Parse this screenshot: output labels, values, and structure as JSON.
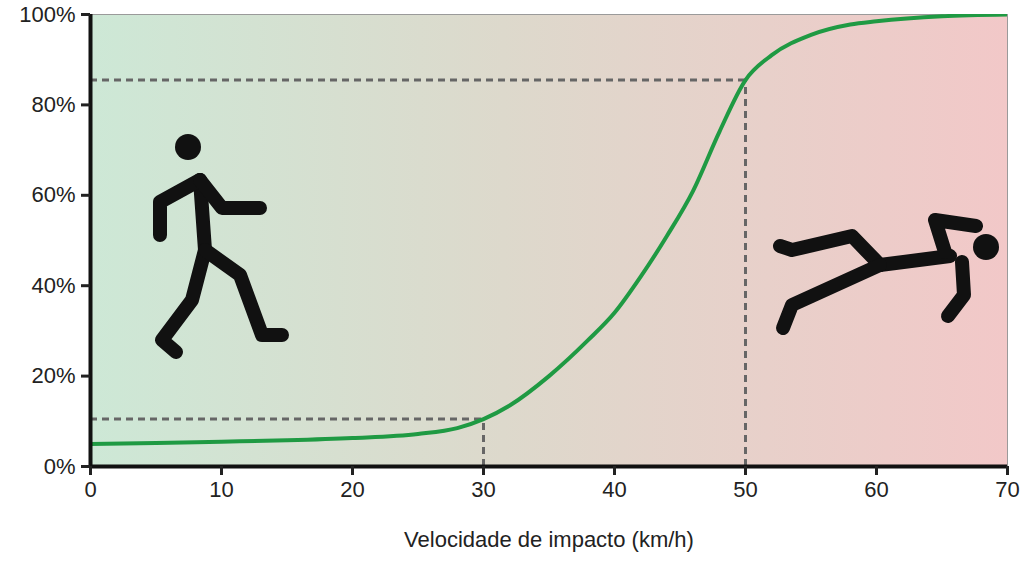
{
  "chart_data": {
    "type": "line",
    "x_label": "Velocidade de impacto (km/h)",
    "x": [
      0,
      5,
      10,
      15,
      20,
      25,
      28,
      30,
      32,
      35,
      38,
      40,
      42,
      44,
      46,
      48,
      50,
      52,
      55,
      58,
      60,
      65,
      70
    ],
    "values": [
      5,
      5.2,
      5.5,
      5.8,
      6.3,
      7.2,
      8.5,
      10.5,
      13.5,
      20,
      28,
      34,
      42,
      51,
      61,
      74,
      85.5,
      91,
      95.5,
      97.8,
      98.5,
      99.6,
      100
    ],
    "color": "#1f9a43",
    "reference_points": [
      {
        "x": 30,
        "y": 10.5
      },
      {
        "x": 50,
        "y": 85.5
      }
    ],
    "xlim": [
      0,
      70
    ],
    "xticks": [
      0,
      10,
      20,
      30,
      40,
      50,
      60,
      70
    ],
    "ylim": [
      0,
      100
    ],
    "yticks": [
      {
        "value": 0,
        "label": "0%"
      },
      {
        "value": 20,
        "label": "20%"
      },
      {
        "value": 40,
        "label": "40%"
      },
      {
        "value": 60,
        "label": "60%"
      },
      {
        "value": 80,
        "label": "80%"
      },
      {
        "value": 100,
        "label": "100%"
      }
    ],
    "grid": false
  }
}
